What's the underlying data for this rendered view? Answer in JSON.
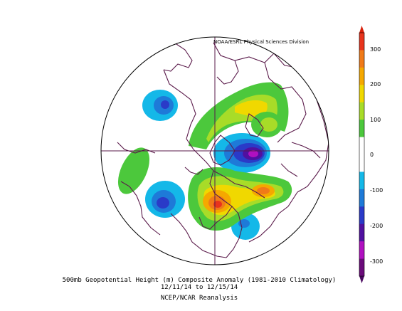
{
  "credit": "NOAA/ESRL Physical Sciences Division",
  "caption": {
    "line1": "500mb Geopotential Height (m) Composite Anomaly (1981-2010 Climatology)",
    "line2": "12/11/14  to 12/15/14",
    "line3": "NCEP/NCAR Reanalysis"
  },
  "colorbar": {
    "ticks": [
      "300",
      "200",
      "100",
      "0",
      "-100",
      "-200",
      "-300"
    ],
    "colors": [
      "#e8341c",
      "#f07a18",
      "#f5a800",
      "#f0d800",
      "#a8dc28",
      "#4cc83c",
      "#ffffff",
      "#ffffff",
      "#14b8e8",
      "#1e7ad8",
      "#2a3ac8",
      "#5010a0",
      "#b010c0",
      "#6a0a7a"
    ]
  },
  "map": {
    "projection": "polar-stereographic-north",
    "coastline_color": "#5a1a4a",
    "anomaly_features": [
      {
        "region": "Greenland / N. Atlantic",
        "sign": "negative",
        "peak": -200
      },
      {
        "region": "Mid-latitude Pacific",
        "sign": "negative",
        "peak": -150
      },
      {
        "region": "North Pacific",
        "sign": "negative",
        "peak": -100
      },
      {
        "region": "Eastern Asia",
        "sign": "negative",
        "peak": -100
      },
      {
        "region": "Bering Strait / Alaska",
        "sign": "positive",
        "peak": 250
      },
      {
        "region": "Arctic / Siberia",
        "sign": "positive",
        "peak": 150
      },
      {
        "region": "Western Europe",
        "sign": "positive",
        "peak": 100
      }
    ]
  }
}
